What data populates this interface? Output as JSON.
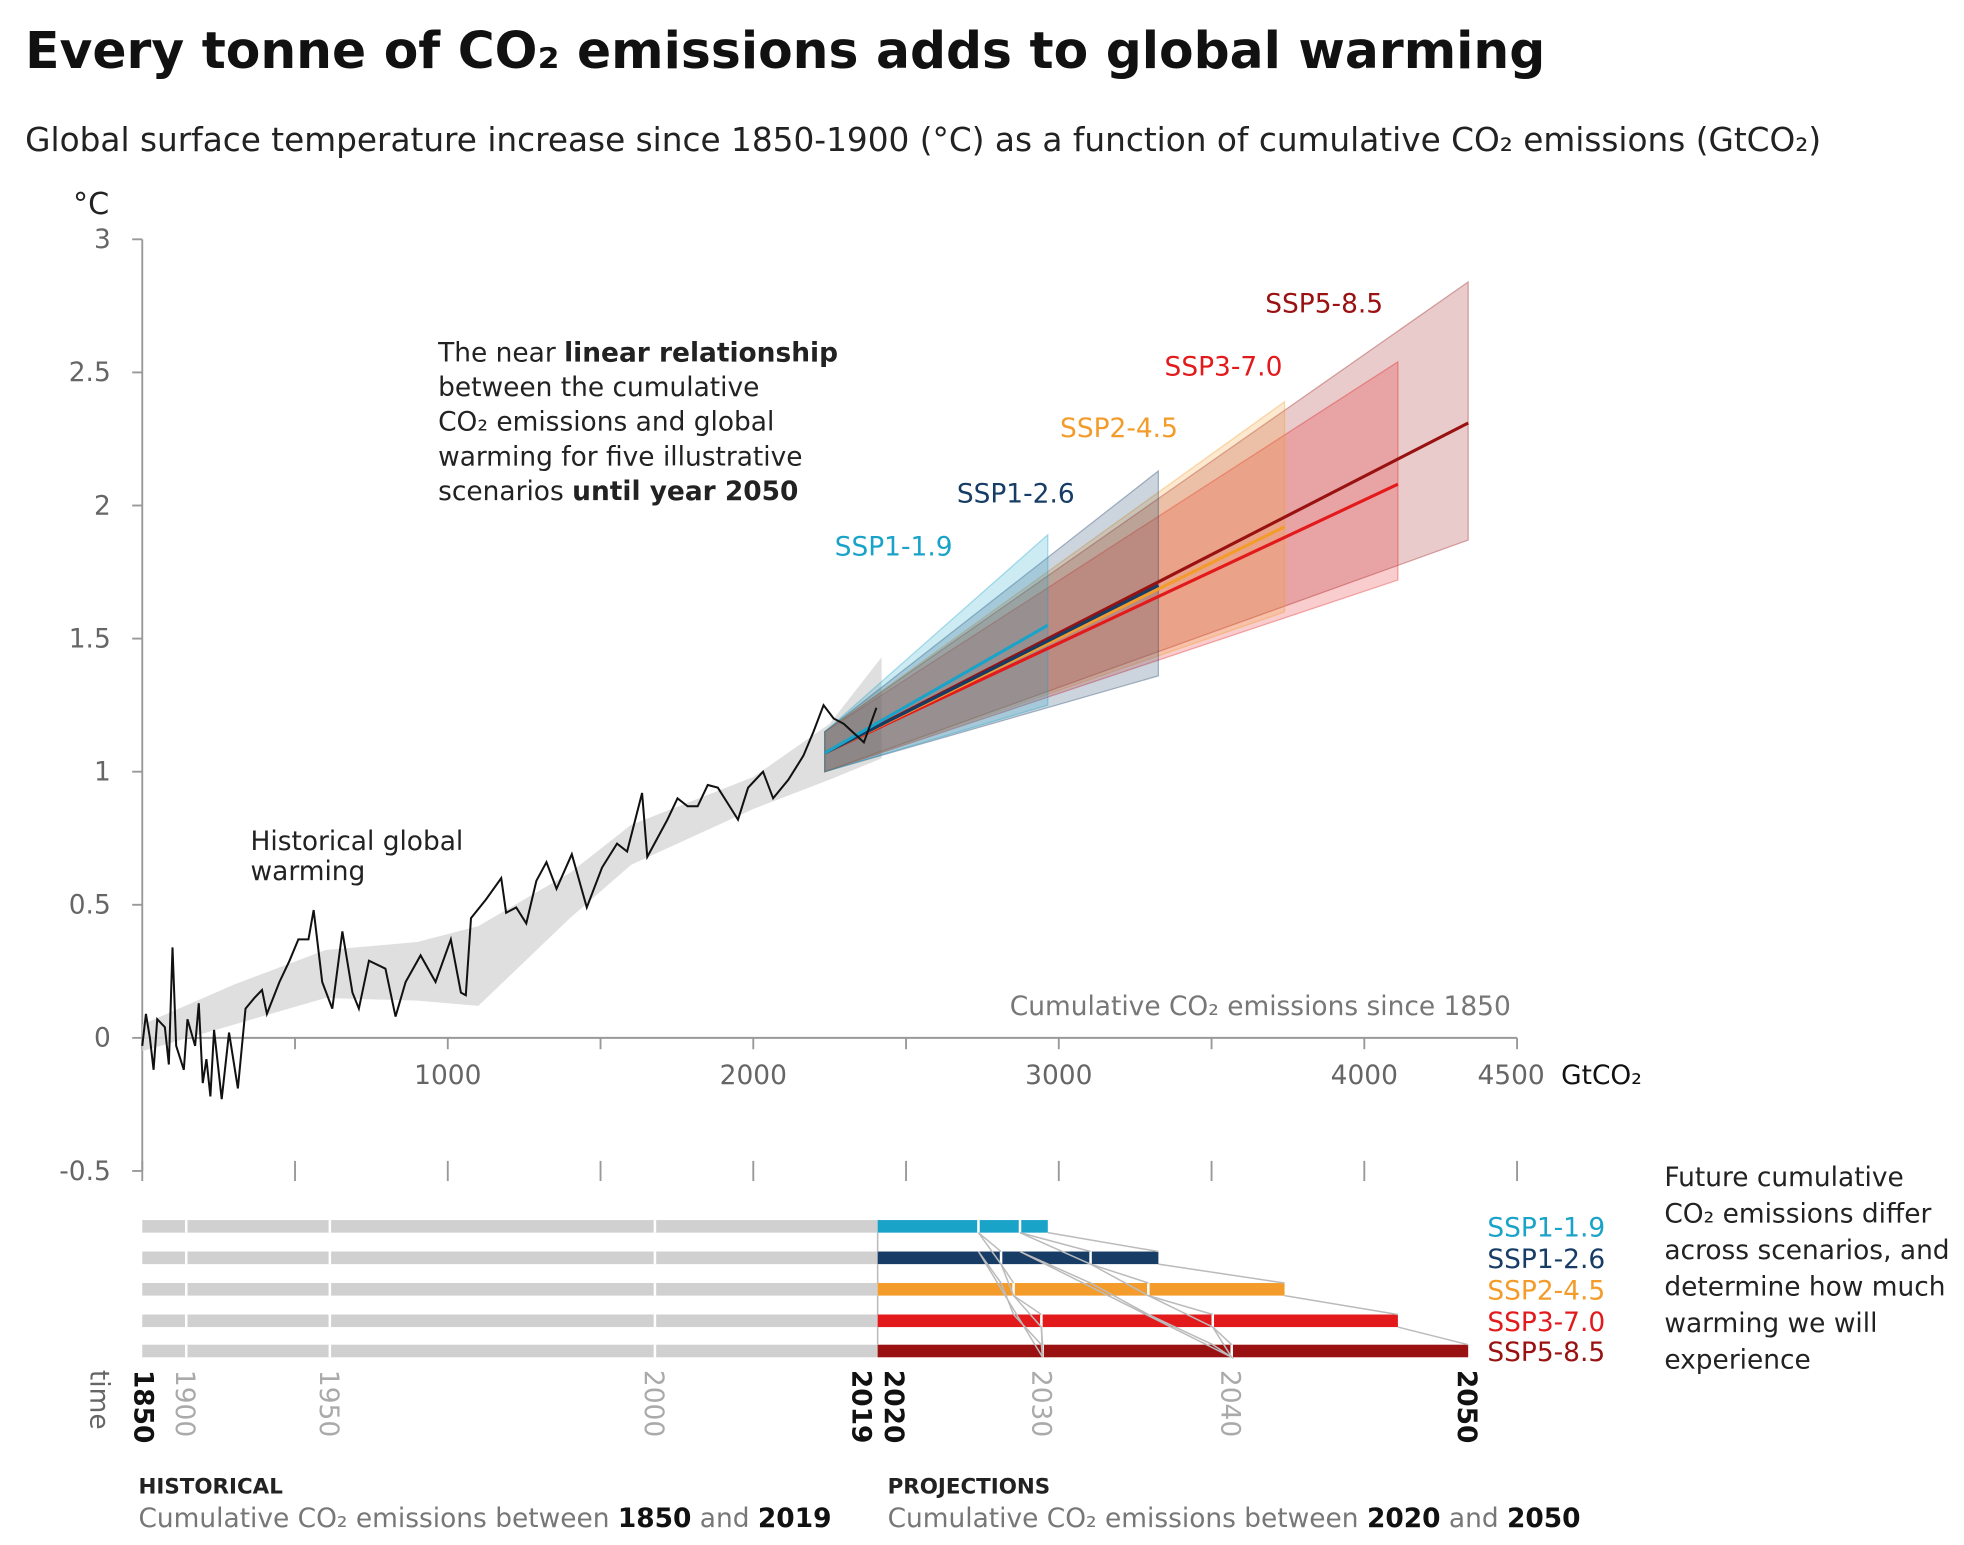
{
  "chart_data": {
    "type": "line",
    "title": "Every tonne of CO₂ emissions adds to global warming",
    "subtitle": "Global surface temperature increase since 1850-1900 (°C) as a function of cumulative CO₂ emissions (GtCO₂)",
    "y_label": "°C",
    "x_label": "GtCO₂",
    "x_axis_note": "Cumulative CO₂ emissions since 1850",
    "xlim": [
      0,
      4500
    ],
    "ylim": [
      -0.5,
      3
    ],
    "xticks": [
      1000,
      2000,
      3000,
      4000,
      4500
    ],
    "xticks_minor": [
      0,
      500,
      1500,
      2500,
      3500
    ],
    "yticks": [
      -0.5,
      0,
      0.5,
      1,
      1.5,
      2,
      2.5,
      3
    ],
    "annotation": [
      [
        "The near ",
        "linear relationship"
      ],
      [
        "between the cumulative"
      ],
      [
        "CO₂ emissions and global"
      ],
      [
        "warming for five illustrative"
      ],
      [
        "scenarios ",
        "until year 2050"
      ]
    ],
    "historical_label": [
      "Historical global",
      "warming"
    ],
    "historical": {
      "color": "#111111",
      "x": [
        0,
        12,
        25,
        37,
        49,
        74,
        87,
        99,
        111,
        136,
        148,
        173,
        185,
        198,
        210,
        223,
        235,
        260,
        284,
        313,
        338,
        367,
        392,
        408,
        449,
        482,
        511,
        544,
        561,
        589,
        622,
        655,
        688,
        709,
        742,
        796,
        829,
        862,
        911,
        960,
        1010,
        1043,
        1059,
        1076,
        1125,
        1175,
        1191,
        1224,
        1257,
        1290,
        1323,
        1356,
        1406,
        1455,
        1505,
        1554,
        1587,
        1636,
        1653,
        1686,
        1719,
        1752,
        1785,
        1818,
        1851,
        1884,
        1917,
        1950,
        1983,
        2032,
        2065,
        2115,
        2164,
        2197,
        2230,
        2263,
        2296,
        2362,
        2403
      ],
      "values": [
        -0.03,
        0.09,
        0.0,
        -0.12,
        0.07,
        0.04,
        -0.1,
        0.34,
        -0.03,
        -0.12,
        0.07,
        -0.03,
        0.13,
        -0.17,
        -0.08,
        -0.22,
        0.03,
        -0.23,
        0.02,
        -0.19,
        0.11,
        0.15,
        0.18,
        0.09,
        0.21,
        0.29,
        0.37,
        0.37,
        0.48,
        0.21,
        0.11,
        0.4,
        0.17,
        0.11,
        0.29,
        0.26,
        0.08,
        0.21,
        0.31,
        0.21,
        0.37,
        0.17,
        0.16,
        0.45,
        0.52,
        0.6,
        0.47,
        0.49,
        0.43,
        0.59,
        0.66,
        0.56,
        0.69,
        0.49,
        0.64,
        0.73,
        0.7,
        0.92,
        0.68,
        0.75,
        0.82,
        0.9,
        0.87,
        0.87,
        0.95,
        0.94,
        0.88,
        0.82,
        0.94,
        1.0,
        0.9,
        0.97,
        1.06,
        1.15,
        1.25,
        1.2,
        1.18,
        1.11,
        1.24
      ],
      "range": {
        "x": [
          0,
          300,
          600,
          900,
          1100,
          1400,
          1600,
          2000,
          2250,
          2420
        ],
        "lower": [
          -0.05,
          0.05,
          0.15,
          0.14,
          0.12,
          0.45,
          0.65,
          0.86,
          0.97,
          1.05
        ],
        "upper": [
          0.05,
          0.2,
          0.33,
          0.36,
          0.42,
          0.62,
          0.8,
          0.98,
          1.18,
          1.43
        ]
      }
    },
    "scenarios": [
      {
        "name": "SSP1-1.9",
        "color": "#1aa3c8",
        "x": [
          2234,
          2964
        ],
        "values": [
          1.07,
          1.55
        ],
        "lower": [
          1.0,
          1.25
        ],
        "upper": [
          1.15,
          1.89
        ],
        "x2030": 2737,
        "x2040": 2873
      },
      {
        "name": "SSP1-2.6",
        "color": "#173c66",
        "x": [
          2234,
          3326
        ],
        "values": [
          1.07,
          1.7
        ],
        "lower": [
          1.0,
          1.36
        ],
        "upper": [
          1.15,
          2.13
        ],
        "x2030": 2811,
        "x2040": 3104
      },
      {
        "name": "SSP2-4.5",
        "color": "#f39c2b",
        "x": [
          2234,
          3739
        ],
        "values": [
          1.07,
          1.92
        ],
        "lower": [
          1.0,
          1.6
        ],
        "upper": [
          1.15,
          2.39
        ],
        "x2030": 2852,
        "x2040": 3293
      },
      {
        "name": "SSP3-7.0",
        "color": "#e31a1c",
        "x": [
          2234,
          4110
        ],
        "values": [
          1.07,
          2.08
        ],
        "lower": [
          1.0,
          1.72
        ],
        "upper": [
          1.15,
          2.54
        ],
        "x2030": 2943,
        "x2040": 3504
      },
      {
        "name": "SSP5-8.5",
        "color": "#991111",
        "x": [
          2234,
          4340
        ],
        "values": [
          1.07,
          2.31
        ],
        "lower": [
          1.0,
          1.87
        ],
        "upper": [
          1.15,
          2.84
        ],
        "x2030": 2947,
        "x2040": 3566
      }
    ],
    "timeline": {
      "axis_label": "time",
      "historical_end": 2407,
      "years": [
        {
          "label": "1850",
          "x": 0,
          "bold": true
        },
        {
          "label": "1900",
          "x": 144,
          "bold": false
        },
        {
          "label": "1950",
          "x": 614,
          "bold": false
        },
        {
          "label": "2000",
          "x": 1678,
          "bold": false
        },
        {
          "label": "2019",
          "x": 2407,
          "bold": true
        },
        {
          "label": "2020",
          "x": 2407,
          "bold": true
        },
        {
          "label": "2030",
          "x": 2947,
          "bold": false
        },
        {
          "label": "2040",
          "x": 3566,
          "bold": false
        },
        {
          "label": "2050",
          "x": 4340,
          "bold": true
        }
      ],
      "side_note": [
        "Future cumulative",
        "CO₂ emissions differ",
        "across scenarios, and",
        "determine how much",
        "warming we will",
        "experience"
      ],
      "historical_heading": "HISTORICAL",
      "historical_note": [
        "Cumulative CO₂ emissions between ",
        "1850",
        " and ",
        "2019"
      ],
      "projections_heading": "PROJECTIONS",
      "projections_note": [
        "Cumulative CO₂ emissions between ",
        "2020",
        " and ",
        "2050"
      ]
    }
  }
}
